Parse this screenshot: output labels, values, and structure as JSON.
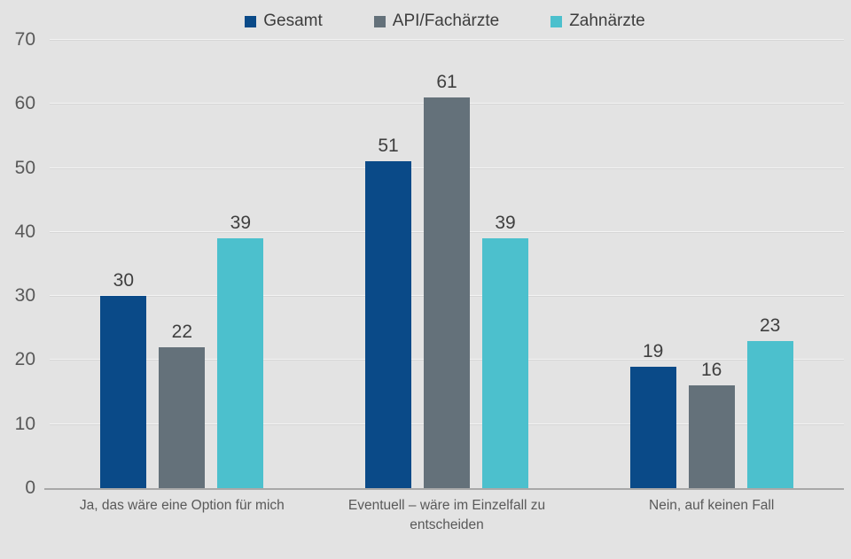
{
  "colors": {
    "background": "#e3e3e3",
    "gridline": "#f3f3f3",
    "gridline_edge": "#d6d6d6",
    "baseline": "#a8a8a8",
    "axis_text": "#595959",
    "value_text": "#3f3f3f",
    "legend_text": "#3d3d3d"
  },
  "legend": {
    "items": [
      {
        "label": "Gesamt",
        "color": "#0a4a88"
      },
      {
        "label": "API/Fachärzte",
        "color": "#64717a"
      },
      {
        "label": "Zahnärzte",
        "color": "#4cc0cd"
      }
    ]
  },
  "chart_data": {
    "type": "bar",
    "title": "",
    "xlabel": "",
    "ylabel": "",
    "categories": [
      "Ja, das wäre eine Option für mich",
      "Eventuell – wäre im Einzelfall zu entscheiden",
      "Nein, auf keinen Fall"
    ],
    "series": [
      {
        "name": "Gesamt",
        "color": "#0a4a88",
        "values": [
          30,
          51,
          19
        ]
      },
      {
        "name": "API/Fachärzte",
        "color": "#64717a",
        "values": [
          22,
          61,
          16
        ]
      },
      {
        "name": "Zahnärzte",
        "color": "#4cc0cd",
        "values": [
          39,
          39,
          23
        ]
      }
    ],
    "ylim": [
      0,
      70
    ],
    "ytick_step": 10,
    "yticks": [
      0,
      10,
      20,
      30,
      40,
      50,
      60,
      70
    ],
    "grid": true,
    "value_labels": true,
    "legend_position": "top-center"
  }
}
